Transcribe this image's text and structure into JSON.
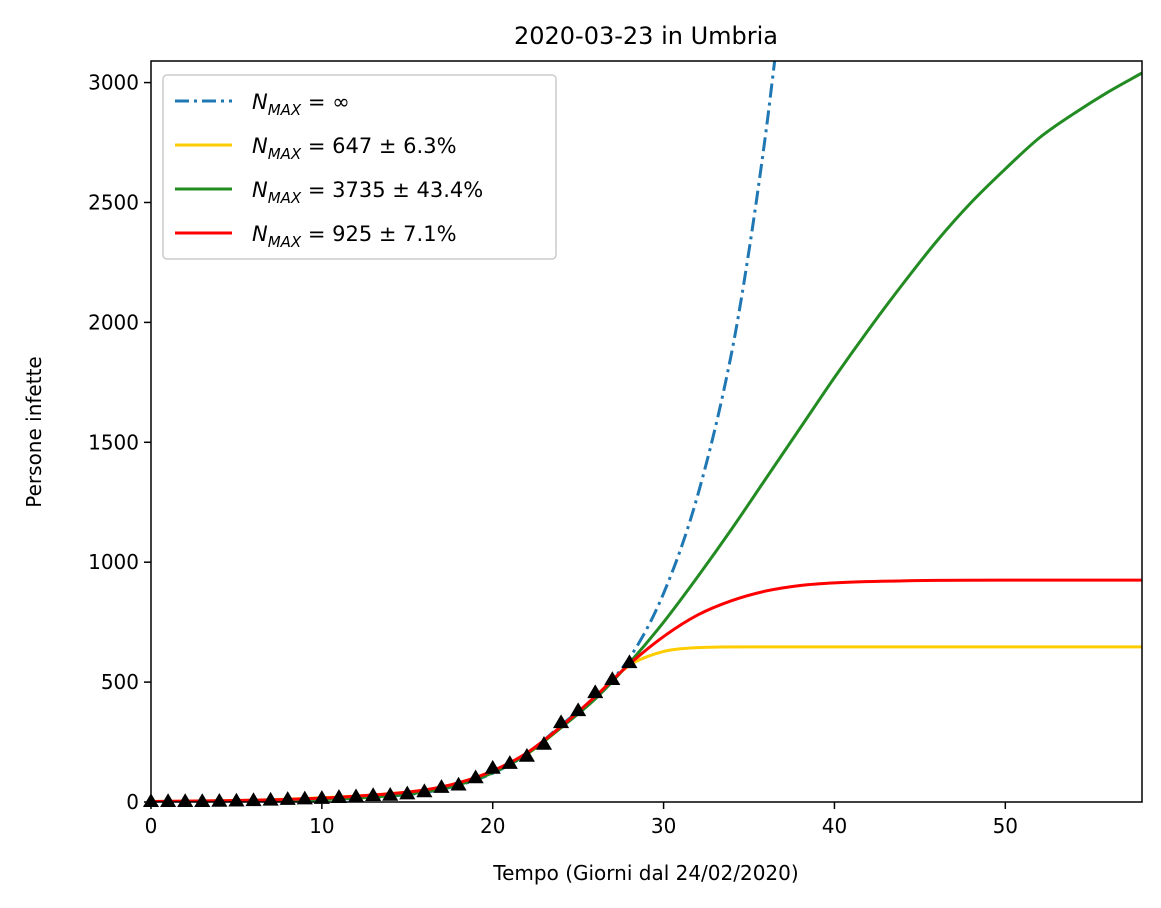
{
  "chart_data": {
    "type": "line",
    "title": "2020-03-23 in Umbria",
    "xlabel": "Tempo (Giorni dal 24/02/2020)",
    "ylabel": "Persone infette",
    "xlim": [
      0,
      58
    ],
    "ylim": [
      0,
      3090
    ],
    "xticks": [
      0,
      10,
      20,
      30,
      40,
      50
    ],
    "yticks": [
      0,
      500,
      1000,
      1500,
      2000,
      2500,
      3000
    ],
    "grid": false,
    "legend_position": "upper-left",
    "series": [
      {
        "name": "N_MAX = ∞",
        "legend": {
          "prefix": "N",
          "subscript": "MAX",
          "suffix": " = ∞"
        },
        "color": "#1f77b4",
        "style": "dash-dot",
        "x": [
          0,
          4,
          8,
          12,
          16,
          18,
          20,
          22,
          24,
          26,
          28,
          30,
          32,
          34,
          35,
          36,
          36.5
        ],
        "y": [
          1,
          3,
          7,
          15,
          40,
          70,
          120,
          200,
          320,
          440,
          600,
          870,
          1280,
          1880,
          2300,
          2800,
          3090
        ]
      },
      {
        "name": "N_MAX = 647 ± 6.3%",
        "legend": {
          "prefix": "N",
          "subscript": "MAX",
          "suffix": " = 647 ± 6.3%"
        },
        "color": "#ffcc00",
        "style": "solid",
        "x": [
          0,
          4,
          8,
          12,
          16,
          18,
          20,
          22,
          24,
          26,
          28,
          29,
          30,
          31,
          32,
          33,
          35,
          40,
          58
        ],
        "y": [
          2,
          5,
          12,
          25,
          50,
          80,
          130,
          200,
          310,
          440,
          570,
          605,
          628,
          639,
          644,
          646,
          647,
          647,
          647
        ]
      },
      {
        "name": "N_MAX = 3735 ± 43.4%",
        "legend": {
          "prefix": "N",
          "subscript": "MAX",
          "suffix": " = 3735 ± 43.4%"
        },
        "color": "#228b22",
        "style": "solid",
        "x": [
          0,
          4,
          8,
          12,
          16,
          18,
          20,
          22,
          24,
          26,
          28,
          30,
          32,
          34,
          36,
          38,
          40,
          42,
          44,
          46,
          48,
          50,
          52,
          54,
          56,
          58
        ],
        "y": [
          1,
          3,
          7,
          16,
          42,
          72,
          122,
          200,
          310,
          430,
          580,
          750,
          940,
          1140,
          1350,
          1560,
          1770,
          1970,
          2160,
          2340,
          2500,
          2640,
          2770,
          2870,
          2960,
          3040
        ]
      },
      {
        "name": "N_MAX = 925 ± 7.1%",
        "legend": {
          "prefix": "N",
          "subscript": "MAX",
          "suffix": " = 925 ± 7.1%"
        },
        "color": "#ff0000",
        "style": "solid",
        "x": [
          0,
          4,
          8,
          12,
          16,
          18,
          20,
          22,
          24,
          26,
          28,
          30,
          32,
          34,
          36,
          38,
          40,
          44,
          50,
          58
        ],
        "y": [
          2,
          5,
          11,
          24,
          50,
          80,
          130,
          205,
          315,
          440,
          575,
          690,
          780,
          840,
          880,
          903,
          914,
          922,
          925,
          925
        ]
      }
    ],
    "observed": {
      "marker": "triangle",
      "color": "#000000",
      "x": [
        0,
        1,
        2,
        3,
        4,
        5,
        6,
        7,
        8,
        9,
        10,
        11,
        12,
        13,
        14,
        15,
        16,
        17,
        18,
        19,
        20,
        21,
        22,
        23,
        24,
        25,
        26,
        27,
        28
      ],
      "y": [
        1,
        1,
        1,
        1,
        2,
        3,
        5,
        7,
        10,
        12,
        14,
        18,
        21,
        26,
        27,
        33,
        42,
        60,
        70,
        100,
        140,
        160,
        190,
        240,
        330,
        380,
        455,
        510,
        580
      ]
    }
  }
}
